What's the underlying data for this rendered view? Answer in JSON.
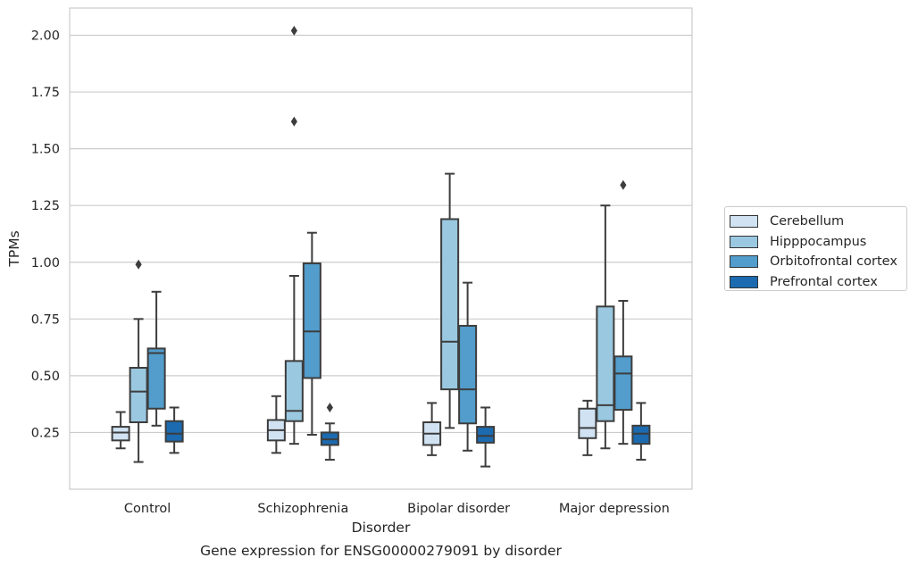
{
  "chart_data": {
    "type": "box",
    "title": "Gene expression for ENSG00000279091 by disorder",
    "xlabel": "Disorder",
    "ylabel": "TPMs",
    "ylim": [
      0.0,
      2.12
    ],
    "yticks": [
      0.25,
      0.5,
      0.75,
      1.0,
      1.25,
      1.5,
      1.75,
      2.0
    ],
    "ytick_labels": [
      "0.25",
      "0.50",
      "0.75",
      "1.00",
      "1.25",
      "1.50",
      "1.75",
      "2.00"
    ],
    "grid": true,
    "legend_position": "right",
    "categories": [
      "Control",
      "Schizophrenia",
      "Bipolar disorder",
      "Major depression"
    ],
    "series": [
      {
        "name": "Cerebellum",
        "color": "#d1e3f3",
        "boxes": [
          {
            "whislo": 0.18,
            "q1": 0.215,
            "med": 0.25,
            "q3": 0.275,
            "whishi": 0.34,
            "fliers": []
          },
          {
            "whislo": 0.16,
            "q1": 0.215,
            "med": 0.26,
            "q3": 0.305,
            "whishi": 0.41,
            "fliers": []
          },
          {
            "whislo": 0.15,
            "q1": 0.195,
            "med": 0.245,
            "q3": 0.295,
            "whishi": 0.38,
            "fliers": []
          },
          {
            "whislo": 0.15,
            "q1": 0.225,
            "med": 0.27,
            "q3": 0.355,
            "whishi": 0.39,
            "fliers": []
          }
        ]
      },
      {
        "name": "Hipppocampus",
        "color": "#9ac8e0",
        "boxes": [
          {
            "whislo": 0.12,
            "q1": 0.295,
            "med": 0.43,
            "q3": 0.535,
            "whishi": 0.75,
            "fliers": [
              0.99
            ]
          },
          {
            "whislo": 0.2,
            "q1": 0.3,
            "med": 0.345,
            "q3": 0.565,
            "whishi": 0.94,
            "fliers": [
              1.62,
              2.02
            ]
          },
          {
            "whislo": 0.27,
            "q1": 0.44,
            "med": 0.65,
            "q3": 1.19,
            "whishi": 1.39,
            "fliers": []
          },
          {
            "whislo": 0.18,
            "q1": 0.3,
            "med": 0.37,
            "q3": 0.805,
            "whishi": 1.25,
            "fliers": []
          }
        ]
      },
      {
        "name": "Orbitofrontal cortex",
        "color": "#529dcc",
        "boxes": [
          {
            "whislo": 0.28,
            "q1": 0.355,
            "med": 0.6,
            "q3": 0.62,
            "whishi": 0.87,
            "fliers": []
          },
          {
            "whislo": 0.24,
            "q1": 0.49,
            "med": 0.695,
            "q3": 0.995,
            "whishi": 1.13,
            "fliers": []
          },
          {
            "whislo": 0.17,
            "q1": 0.29,
            "med": 0.44,
            "q3": 0.72,
            "whishi": 0.91,
            "fliers": []
          },
          {
            "whislo": 0.2,
            "q1": 0.35,
            "med": 0.51,
            "q3": 0.585,
            "whishi": 0.83,
            "fliers": [
              1.34
            ]
          }
        ]
      },
      {
        "name": "Prefrontal cortex",
        "color": "#1c6aaf",
        "boxes": [
          {
            "whislo": 0.16,
            "q1": 0.21,
            "med": 0.245,
            "q3": 0.3,
            "whishi": 0.36,
            "fliers": []
          },
          {
            "whislo": 0.13,
            "q1": 0.195,
            "med": 0.22,
            "q3": 0.25,
            "whishi": 0.29,
            "fliers": [
              0.36
            ]
          },
          {
            "whislo": 0.1,
            "q1": 0.205,
            "med": 0.235,
            "q3": 0.275,
            "whishi": 0.36,
            "fliers": []
          },
          {
            "whislo": 0.13,
            "q1": 0.2,
            "med": 0.245,
            "q3": 0.28,
            "whishi": 0.38,
            "fliers": []
          }
        ]
      }
    ]
  }
}
